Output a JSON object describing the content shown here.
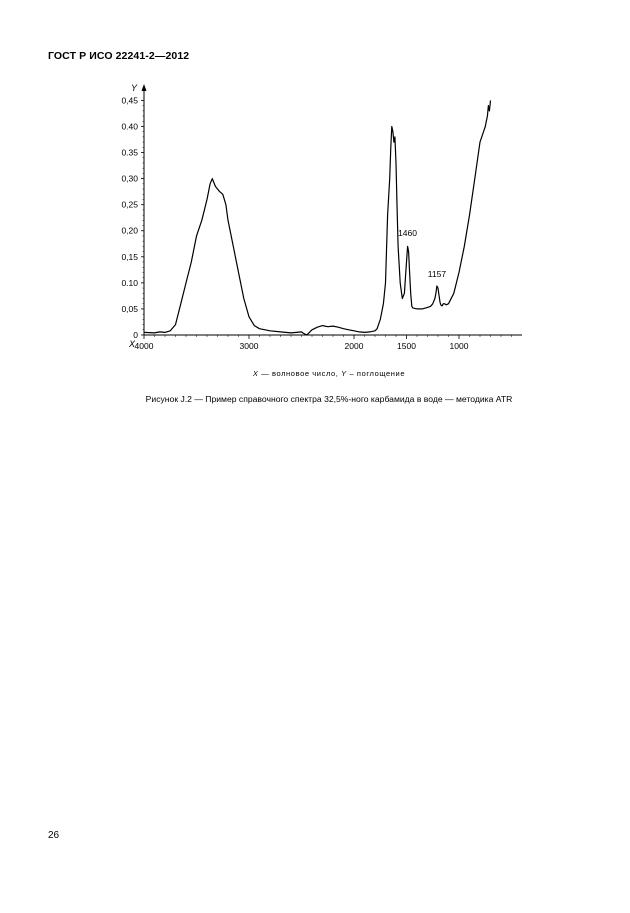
{
  "header": {
    "title": "ГОСТ Р ИСО 22241-2—2012"
  },
  "chart_data": {
    "type": "line",
    "axis_letters": {
      "x": "X",
      "y": "Y"
    },
    "x_ticks": [
      "4000",
      "3000",
      "2000",
      "1500",
      "1000"
    ],
    "x_tick_values": [
      4000,
      3000,
      2000,
      1500,
      1000
    ],
    "y_ticks": [
      "0",
      "0,05",
      "0.10",
      "0,15",
      "0,20",
      "0,25",
      "0,30",
      "0.35",
      "0.40",
      "0,45"
    ],
    "y_tick_values": [
      0,
      0.05,
      0.1,
      0.15,
      0.2,
      0.25,
      0.3,
      0.35,
      0.4,
      0.45
    ],
    "xlim": [
      4000,
      400
    ],
    "ylim": [
      0,
      0.47
    ],
    "grid": false,
    "annotations": [
      {
        "text": "1460",
        "x": 1490,
        "y": 0.175
      },
      {
        "text": "1157",
        "x": 1210,
        "y": 0.096
      }
    ],
    "series": [
      {
        "x": [
          4000,
          3900,
          3850,
          3800,
          3750,
          3700,
          3650,
          3600,
          3550,
          3500,
          3450,
          3400,
          3370,
          3350,
          3320,
          3300,
          3280,
          3250,
          3220,
          3200,
          3150,
          3100,
          3050,
          3000,
          2950,
          2900,
          2800,
          2700,
          2600,
          2550,
          2500,
          2480,
          2450,
          2400,
          2350,
          2300,
          2250,
          2200,
          2150,
          2100,
          2050,
          2000,
          1950,
          1900,
          1850,
          1800,
          1780,
          1750,
          1720,
          1700,
          1680,
          1660,
          1650,
          1640,
          1630,
          1620,
          1610,
          1600,
          1590,
          1580,
          1560,
          1540,
          1520,
          1500,
          1490,
          1480,
          1470,
          1460,
          1450,
          1440,
          1420,
          1400,
          1350,
          1300,
          1270,
          1250,
          1230,
          1220,
          1210,
          1200,
          1190,
          1180,
          1170,
          1160,
          1150,
          1140,
          1120,
          1100,
          1050,
          1000,
          950,
          900,
          850,
          800,
          750,
          740,
          730,
          720,
          710,
          700
        ],
        "y": [
          0.005,
          0.004,
          0.006,
          0.005,
          0.008,
          0.02,
          0.06,
          0.1,
          0.14,
          0.19,
          0.22,
          0.26,
          0.29,
          0.3,
          0.285,
          0.28,
          0.275,
          0.27,
          0.25,
          0.22,
          0.17,
          0.12,
          0.07,
          0.035,
          0.018,
          0.012,
          0.008,
          0.006,
          0.004,
          0.005,
          0.006,
          0.003,
          0.0,
          0.01,
          0.015,
          0.018,
          0.016,
          0.017,
          0.015,
          0.012,
          0.01,
          0.008,
          0.006,
          0.005,
          0.006,
          0.008,
          0.012,
          0.03,
          0.06,
          0.1,
          0.23,
          0.3,
          0.36,
          0.4,
          0.39,
          0.37,
          0.38,
          0.33,
          0.25,
          0.17,
          0.1,
          0.07,
          0.08,
          0.14,
          0.17,
          0.16,
          0.12,
          0.08,
          0.055,
          0.052,
          0.051,
          0.05,
          0.05,
          0.053,
          0.055,
          0.06,
          0.07,
          0.08,
          0.094,
          0.09,
          0.075,
          0.062,
          0.057,
          0.056,
          0.06,
          0.06,
          0.058,
          0.06,
          0.08,
          0.12,
          0.17,
          0.23,
          0.3,
          0.37,
          0.4,
          0.41,
          0.42,
          0.44,
          0.43,
          0.45
        ]
      }
    ]
  },
  "axis_caption": {
    "x_symbol": "X",
    "x_text": "— волновое число,",
    "y_symbol": "Y",
    "y_text": "– поглощение"
  },
  "figure_caption": "Рисунок J.2 — Пример справочного спектра 32,5%-ного карбамида в воде — методика ATR",
  "page_number": "26"
}
